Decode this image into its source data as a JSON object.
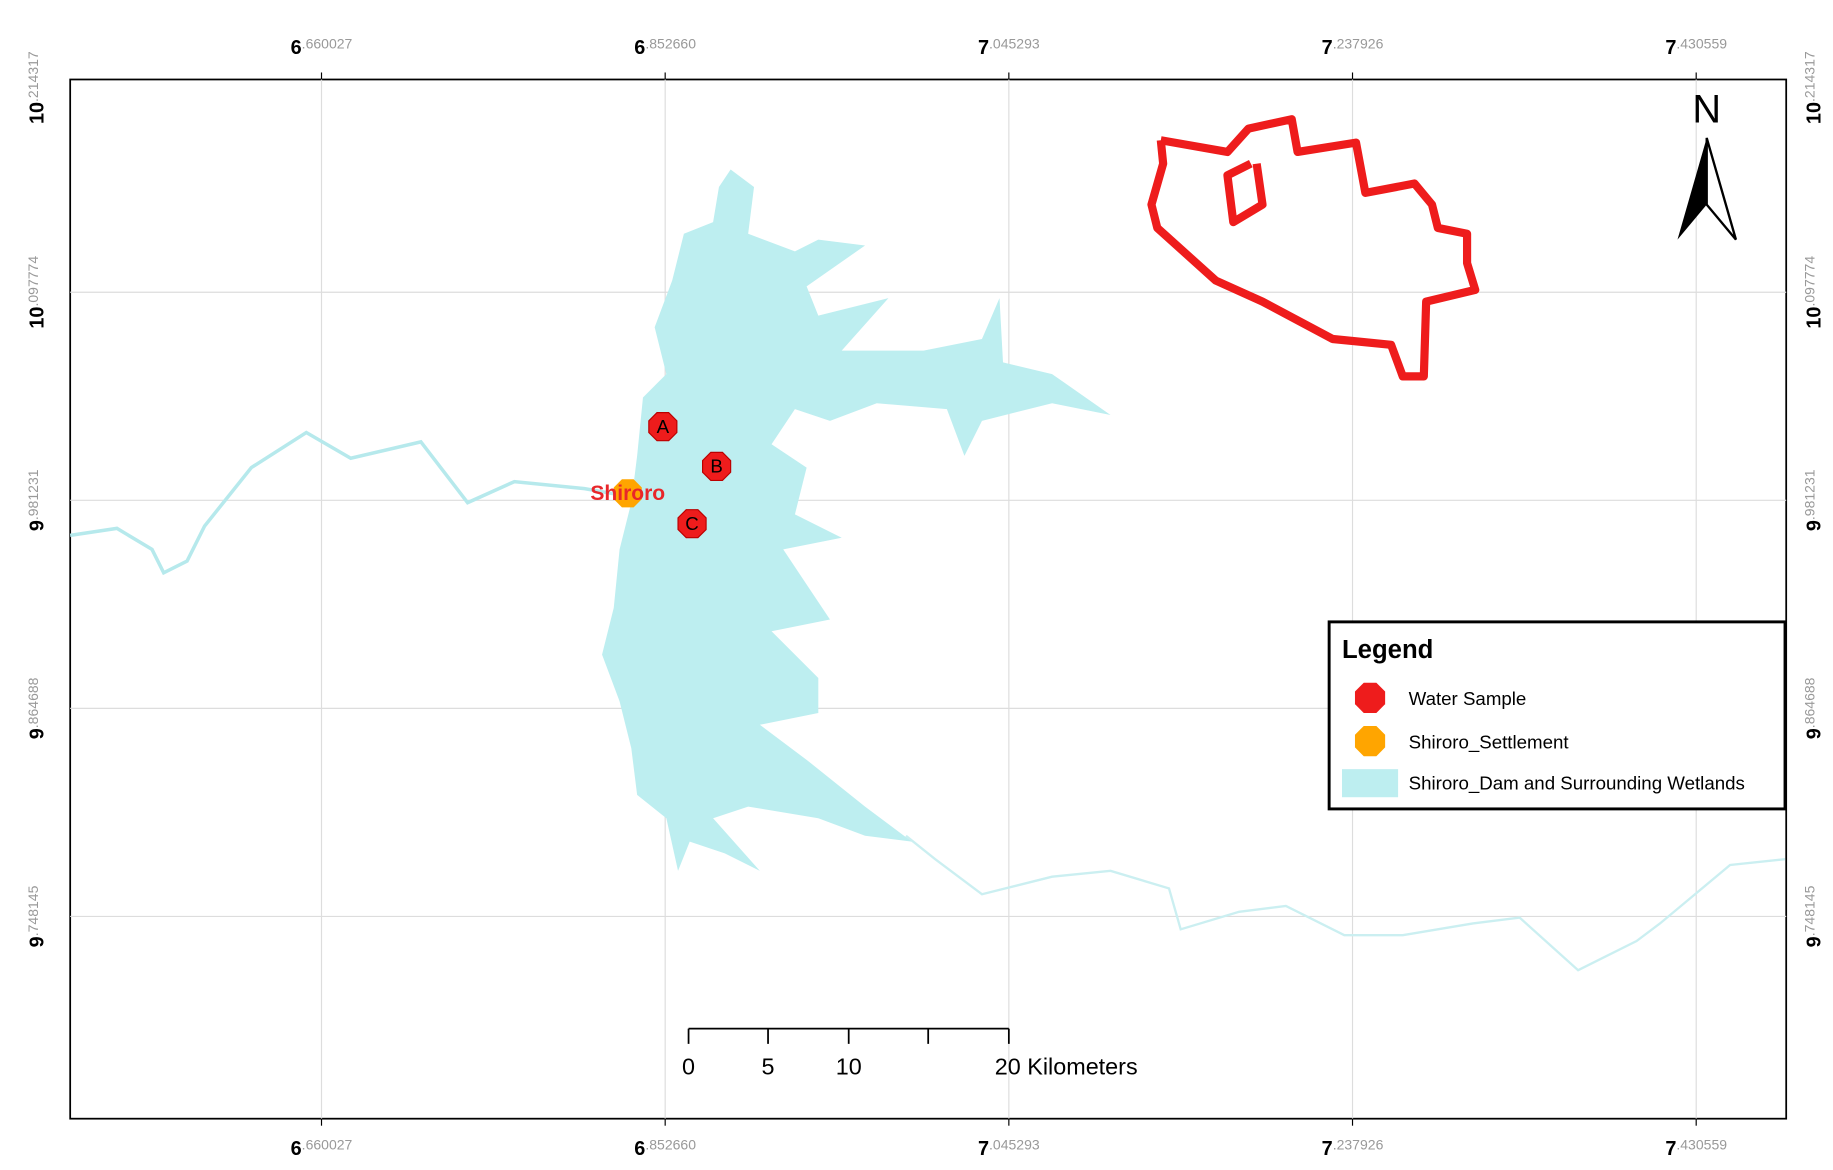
{
  "map": {
    "x_labels": [
      {
        "major": "6",
        "minor": ".660027"
      },
      {
        "major": "6",
        "minor": ".852660"
      },
      {
        "major": "7",
        "minor": ".045293"
      },
      {
        "major": "7",
        "minor": ".237926"
      },
      {
        "major": "7",
        "minor": ".430559"
      }
    ],
    "y_labels": [
      {
        "major": "10",
        "minor": ".214317"
      },
      {
        "major": "10",
        "minor": ".097774"
      },
      {
        "major": "9",
        "minor": ".981231"
      },
      {
        "major": "9",
        "minor": ".864688"
      },
      {
        "major": "9",
        "minor": ".748145"
      }
    ],
    "north": "N",
    "sites": [
      "A",
      "B",
      "C"
    ],
    "settlement": "Shiroro",
    "scale_bar": [
      "0",
      "5",
      "10",
      "20 Kilometers"
    ],
    "legend": {
      "title": "Legend",
      "items": [
        "Water Sample",
        "Shiroro_Settlement",
        "Shiroro_Dam and Surrounding Wetlands"
      ]
    }
  }
}
